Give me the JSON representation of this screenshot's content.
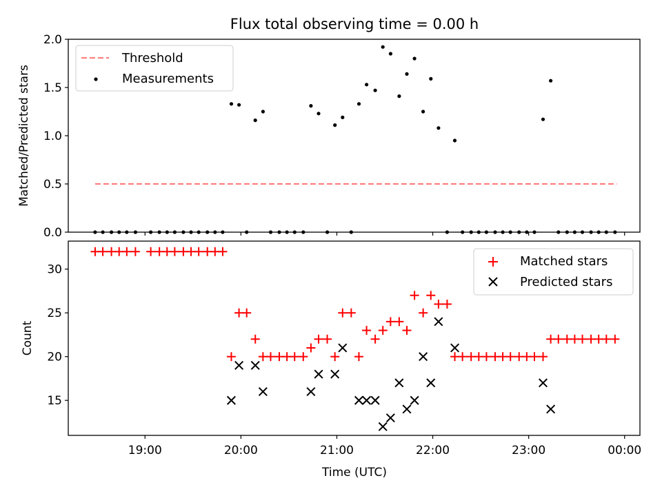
{
  "chart_data": [
    {
      "type": "scatter",
      "title": "Flux total observing time = 0.00 h",
      "ylabel": "Matched/Predicted stars",
      "ylim": [
        0,
        2.0
      ],
      "yticks": [
        0.0,
        0.5,
        1.0,
        1.5,
        2.0
      ],
      "ytick_labels": [
        "0.0",
        "0.5",
        "1.0",
        "1.5",
        "2.0"
      ],
      "xlim_hours": [
        18.2,
        24.16
      ],
      "legend_position": "top-left",
      "threshold": {
        "name": "Threshold",
        "value": 0.5,
        "x_start": 18.48,
        "x_end": 23.92,
        "color": "#ff7f7f"
      },
      "series": [
        {
          "name": "Measurements",
          "color": "#000000",
          "points": [
            [
              18.48,
              0
            ],
            [
              18.56,
              0
            ],
            [
              18.65,
              0
            ],
            [
              18.73,
              0
            ],
            [
              18.81,
              0
            ],
            [
              18.9,
              0
            ],
            [
              19.06,
              0
            ],
            [
              19.15,
              0
            ],
            [
              19.23,
              0
            ],
            [
              19.31,
              0
            ],
            [
              19.4,
              0
            ],
            [
              19.48,
              0
            ],
            [
              19.56,
              0
            ],
            [
              19.65,
              0
            ],
            [
              19.73,
              0
            ],
            [
              19.81,
              0
            ],
            [
              19.9,
              1.33
            ],
            [
              19.98,
              1.32
            ],
            [
              20.06,
              0
            ],
            [
              20.15,
              1.16
            ],
            [
              20.23,
              1.25
            ],
            [
              20.31,
              0
            ],
            [
              20.4,
              0
            ],
            [
              20.48,
              0
            ],
            [
              20.56,
              0
            ],
            [
              20.65,
              0
            ],
            [
              20.73,
              1.31
            ],
            [
              20.81,
              1.23
            ],
            [
              20.9,
              0
            ],
            [
              20.98,
              1.11
            ],
            [
              21.06,
              1.19
            ],
            [
              21.15,
              0
            ],
            [
              21.23,
              1.33
            ],
            [
              21.31,
              1.53
            ],
            [
              21.4,
              1.47
            ],
            [
              21.48,
              1.92
            ],
            [
              21.56,
              1.85
            ],
            [
              21.65,
              1.41
            ],
            [
              21.73,
              1.64
            ],
            [
              21.81,
              1.8
            ],
            [
              21.9,
              1.25
            ],
            [
              21.98,
              1.59
            ],
            [
              22.06,
              1.08
            ],
            [
              22.15,
              0
            ],
            [
              22.23,
              0.95
            ],
            [
              22.31,
              0
            ],
            [
              22.4,
              0
            ],
            [
              22.48,
              0
            ],
            [
              22.56,
              0
            ],
            [
              22.65,
              0
            ],
            [
              22.73,
              0
            ],
            [
              22.81,
              0
            ],
            [
              22.9,
              0
            ],
            [
              22.98,
              0
            ],
            [
              23.06,
              0
            ],
            [
              23.15,
              1.17
            ],
            [
              23.23,
              1.57
            ],
            [
              23.31,
              0
            ],
            [
              23.4,
              0
            ],
            [
              23.48,
              0
            ],
            [
              23.56,
              0
            ],
            [
              23.65,
              0
            ],
            [
              23.73,
              0
            ],
            [
              23.81,
              0
            ],
            [
              23.9,
              0
            ]
          ]
        }
      ]
    },
    {
      "type": "scatter",
      "xlabel": "Time (UTC)",
      "ylabel": "Count",
      "ylim": [
        11,
        33.2
      ],
      "yticks": [
        15,
        20,
        25,
        30
      ],
      "ytick_labels": [
        "15",
        "20",
        "25",
        "30"
      ],
      "xlim_hours": [
        18.2,
        24.16
      ],
      "xticks": [
        19,
        20,
        21,
        22,
        23,
        24
      ],
      "xtick_labels": [
        "19:00",
        "20:00",
        "21:00",
        "22:00",
        "23:00",
        "00:00"
      ],
      "legend_position": "top-right",
      "series": [
        {
          "name": "Matched stars",
          "marker": "plus",
          "color": "#ff0000",
          "points": [
            [
              18.48,
              32
            ],
            [
              18.56,
              32
            ],
            [
              18.65,
              32
            ],
            [
              18.73,
              32
            ],
            [
              18.81,
              32
            ],
            [
              18.9,
              32
            ],
            [
              19.06,
              32
            ],
            [
              19.15,
              32
            ],
            [
              19.23,
              32
            ],
            [
              19.31,
              32
            ],
            [
              19.4,
              32
            ],
            [
              19.48,
              32
            ],
            [
              19.56,
              32
            ],
            [
              19.65,
              32
            ],
            [
              19.73,
              32
            ],
            [
              19.81,
              32
            ],
            [
              19.9,
              20
            ],
            [
              19.98,
              25
            ],
            [
              20.06,
              25
            ],
            [
              20.15,
              22
            ],
            [
              20.23,
              20
            ],
            [
              20.31,
              20
            ],
            [
              20.4,
              20
            ],
            [
              20.48,
              20
            ],
            [
              20.56,
              20
            ],
            [
              20.65,
              20
            ],
            [
              20.73,
              21
            ],
            [
              20.81,
              22
            ],
            [
              20.9,
              22
            ],
            [
              20.98,
              20
            ],
            [
              21.06,
              25
            ],
            [
              21.15,
              25
            ],
            [
              21.23,
              20
            ],
            [
              21.31,
              23
            ],
            [
              21.4,
              22
            ],
            [
              21.48,
              23
            ],
            [
              21.56,
              24
            ],
            [
              21.65,
              24
            ],
            [
              21.73,
              23
            ],
            [
              21.81,
              27
            ],
            [
              21.9,
              25
            ],
            [
              21.98,
              27
            ],
            [
              22.06,
              26
            ],
            [
              22.15,
              26
            ],
            [
              22.23,
              20
            ],
            [
              22.31,
              20
            ],
            [
              22.4,
              20
            ],
            [
              22.48,
              20
            ],
            [
              22.56,
              20
            ],
            [
              22.65,
              20
            ],
            [
              22.73,
              20
            ],
            [
              22.81,
              20
            ],
            [
              22.9,
              20
            ],
            [
              22.98,
              20
            ],
            [
              23.06,
              20
            ],
            [
              23.15,
              20
            ],
            [
              23.23,
              22
            ],
            [
              23.31,
              22
            ],
            [
              23.4,
              22
            ],
            [
              23.48,
              22
            ],
            [
              23.56,
              22
            ],
            [
              23.65,
              22
            ],
            [
              23.73,
              22
            ],
            [
              23.81,
              22
            ],
            [
              23.9,
              22
            ]
          ]
        },
        {
          "name": "Predicted stars",
          "marker": "x",
          "color": "#000000",
          "points": [
            [
              19.9,
              15
            ],
            [
              19.98,
              19
            ],
            [
              20.15,
              19
            ],
            [
              20.23,
              16
            ],
            [
              20.73,
              16
            ],
            [
              20.81,
              18
            ],
            [
              20.98,
              18
            ],
            [
              21.06,
              21
            ],
            [
              21.23,
              15
            ],
            [
              21.31,
              15
            ],
            [
              21.4,
              15
            ],
            [
              21.48,
              12
            ],
            [
              21.56,
              13
            ],
            [
              21.65,
              17
            ],
            [
              21.73,
              14
            ],
            [
              21.81,
              15
            ],
            [
              21.9,
              20
            ],
            [
              21.98,
              17
            ],
            [
              22.06,
              24
            ],
            [
              22.23,
              21
            ],
            [
              23.15,
              17
            ],
            [
              23.23,
              14
            ]
          ]
        }
      ]
    }
  ]
}
